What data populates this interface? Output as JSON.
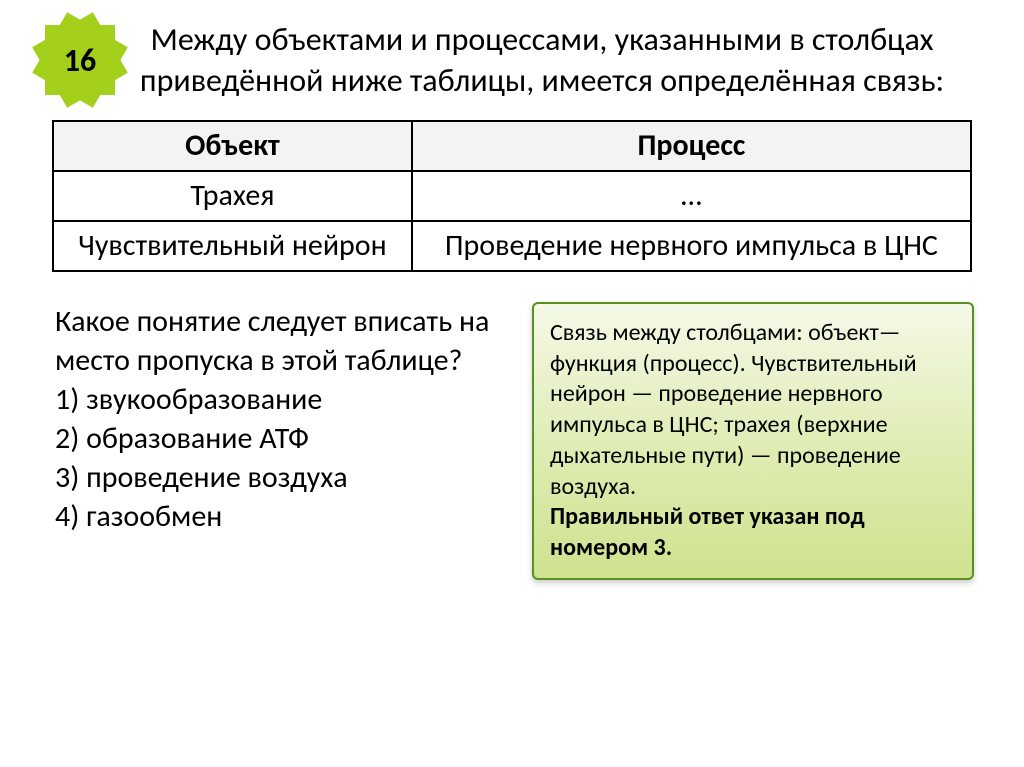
{
  "badge_number": "16",
  "title": "Между объектами и процессами, указанными в столбцах приведённой ниже таблицы, имеется определённая связь:",
  "table": {
    "header": {
      "col1": "Объект",
      "col2": "Процесс"
    },
    "rows": [
      {
        "col1": "Трахея",
        "col2": "…"
      },
      {
        "col1": "Чувствительный нейрон",
        "col2": "Проведение нервного импульса в ЦНС"
      }
    ]
  },
  "question_intro": "Какое понятие следует вписать на место пропуска в этой таблице?",
  "options": {
    "o1": "1) звукообразование",
    "o2": "2) образование АТФ",
    "o3": "3) проведение воздуха",
    "o4": "4) газообмен"
  },
  "answer_text": "Связь между столбцами: объект—функция (процесс). Чувствительный нейрон — проведение нервного импульса в ЦНС; трахея (верхние дыхательные пути) — проведение воздуха.",
  "answer_bold": "Правильный ответ указан под номером 3."
}
